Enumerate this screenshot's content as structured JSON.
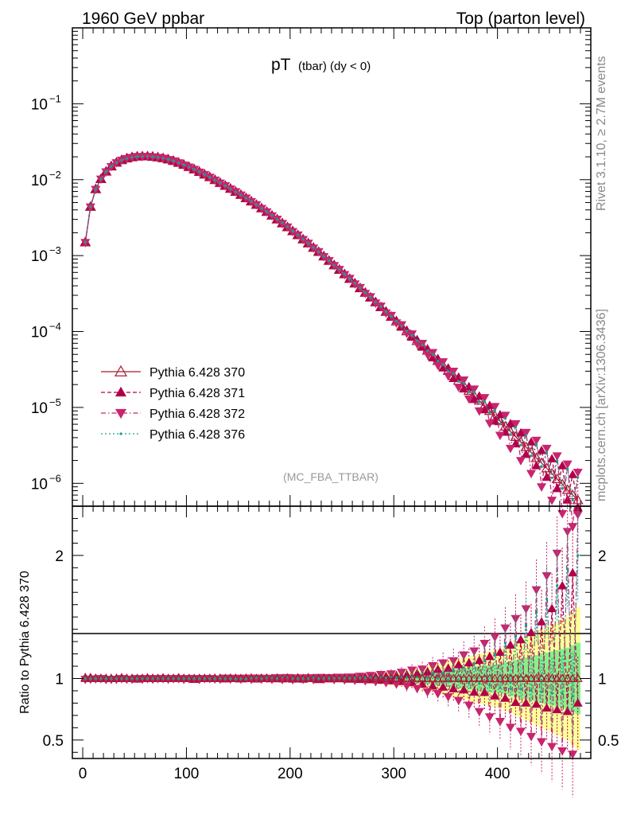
{
  "header": {
    "left": "1960 GeV ppbar",
    "right": "Top (parton level)"
  },
  "side_text": {
    "rivet": "Rivet 3.1.10, ≥ 2.7M events",
    "mcplots": "mcplots.cern.ch [arXiv:1306.3436]"
  },
  "chart_data": [
    {
      "type": "line",
      "panel": "main",
      "title_main": "pT",
      "title_sub": "(tbar) (dy < 0)",
      "watermark": "(MC_FBA_TTBAR)",
      "xlabel": "",
      "ylabel": "",
      "xlim": [
        -10,
        490
      ],
      "ylim": [
        5e-07,
        1.0
      ],
      "yscale": "log",
      "x_ticks": [
        0,
        100,
        200,
        300,
        400
      ],
      "y_tick_labels": [
        {
          "base": "10",
          "exp": "−1",
          "value": 0.1
        },
        {
          "base": "10",
          "exp": "−2",
          "value": 0.01
        },
        {
          "base": "10",
          "exp": "−3",
          "value": 0.001
        },
        {
          "base": "10",
          "exp": "−4",
          "value": 0.0001
        },
        {
          "base": "10",
          "exp": "−5",
          "value": 1e-05
        },
        {
          "base": "10",
          "exp": "−6",
          "value": 1e-06
        }
      ],
      "legend_position": "bottom-left",
      "x": [
        2.5,
        7.5,
        12.5,
        17.5,
        22.5,
        27.5,
        32.5,
        37.5,
        42.5,
        47.5,
        52.5,
        57.5,
        62.5,
        67.5,
        72.5,
        77.5,
        82.5,
        87.5,
        92.5,
        97.5,
        102.5,
        107.5,
        112.5,
        117.5,
        122.5,
        127.5,
        132.5,
        137.5,
        142.5,
        147.5,
        152.5,
        157.5,
        162.5,
        167.5,
        172.5,
        177.5,
        182.5,
        187.5,
        192.5,
        197.5,
        202.5,
        207.5,
        212.5,
        217.5,
        222.5,
        227.5,
        232.5,
        237.5,
        242.5,
        247.5,
        252.5,
        257.5,
        262.5,
        267.5,
        272.5,
        277.5,
        282.5,
        287.5,
        292.5,
        297.5,
        302.5,
        307.5,
        312.5,
        317.5,
        322.5,
        327.5,
        332.5,
        337.5,
        342.5,
        347.5,
        352.5,
        357.5,
        362.5,
        367.5,
        372.5,
        377.5,
        382.5,
        387.5,
        392.5,
        397.5,
        402.5,
        407.5,
        412.5,
        417.5,
        422.5,
        427.5,
        432.5,
        437.5,
        442.5,
        447.5,
        452.5,
        457.5,
        462.5,
        467.5,
        472.5,
        477.5
      ],
      "series": [
        {
          "name": "Pythia 6.428 370",
          "color": "#a51c30",
          "marker": "triangle-up-open",
          "line": "solid",
          "values": [
            0.0015,
            0.0044,
            0.0075,
            0.0102,
            0.0128,
            0.015,
            0.0168,
            0.0181,
            0.0191,
            0.0198,
            0.0202,
            0.0203,
            0.0203,
            0.0201,
            0.0197,
            0.0192,
            0.0185,
            0.0177,
            0.0167,
            0.0157,
            0.0147,
            0.0137,
            0.0127,
            0.0117,
            0.0108,
            0.00991,
            0.00908,
            0.00831,
            0.0076,
            0.00693,
            0.00631,
            0.00572,
            0.00518,
            0.00467,
            0.0042,
            0.00377,
            0.00337,
            0.003,
            0.00267,
            0.00237,
            0.0021,
            0.00186,
            0.00164,
            0.00145,
            0.00127,
            0.00112,
            0.000977,
            0.000855,
            0.000747,
            0.000652,
            0.000568,
            0.000495,
            0.00043,
            0.000373,
            0.000324,
            0.000281,
            0.000243,
            0.00021,
            0.000182,
            0.000157,
            0.000136,
            0.000117,
            0.000101,
            8.7e-05,
            7.5e-05,
            6.5e-05,
            5.6e-05,
            4.8e-05,
            4.1e-05,
            3.55e-05,
            3.05e-05,
            2.62e-05,
            2.25e-05,
            1.93e-05,
            1.66e-05,
            1.43e-05,
            1.23e-05,
            1.05e-05,
            9e-06,
            7.7e-06,
            6.6e-06,
            5.6e-06,
            4.8e-06,
            4.1e-06,
            3.5e-06,
            3e-06,
            2.55e-06,
            2.15e-06,
            1.85e-06,
            1.58e-06,
            1.34e-06,
            1.14e-06,
            9.7e-07,
            8.2e-07,
            7e-07,
            6e-07
          ]
        },
        {
          "name": "Pythia 6.428 371",
          "color": "#b0004a",
          "marker": "triangle-up-filled",
          "line": "dashed",
          "values": [
            0.00151,
            0.00443,
            0.00751,
            0.0102,
            0.0128,
            0.015,
            0.0168,
            0.0182,
            0.0191,
            0.0198,
            0.0201,
            0.0203,
            0.0204,
            0.0201,
            0.0197,
            0.0193,
            0.0185,
            0.0177,
            0.0168,
            0.0157,
            0.0147,
            0.0136,
            0.0127,
            0.0117,
            0.0108,
            0.00993,
            0.0091,
            0.00828,
            0.00762,
            0.00694,
            0.00629,
            0.00573,
            0.0052,
            0.00465,
            0.00421,
            0.00378,
            0.00336,
            0.00301,
            0.00266,
            0.00238,
            0.00209,
            0.00187,
            0.00163,
            0.00146,
            0.00127,
            0.00111,
            0.00098,
            0.000852,
            0.00075,
            0.00065,
            0.00057,
            0.000492,
            0.000433,
            0.00037,
            0.000327,
            0.000278,
            0.000246,
            0.000207,
            0.000185,
            0.000154,
            0.000139,
            0.000114,
            0.000104,
            8.4e-05,
            7.8e-05,
            6.2e-05,
            5.9e-05,
            4.5e-05,
            4.4e-05,
            3.3e-05,
            3.3e-05,
            2.4e-05,
            2.5e-05,
            1.75e-05,
            1.87e-05,
            1.27e-05,
            1.41e-05,
            9.3e-06,
            1.06e-05,
            6.6e-06,
            8e-06,
            4.7e-06,
            6.1e-06,
            3.3e-06,
            4.6e-06,
            2.4e-06,
            3.5e-06,
            1.7e-06,
            2.7e-06,
            1.2e-06,
            2.1e-06,
            8.5e-07,
            1.7e-06,
            6e-07,
            1.3e-06,
            4.8e-07
          ]
        },
        {
          "name": "Pythia 6.428 372",
          "color": "#c8256e",
          "marker": "triangle-down-filled",
          "line": "dashdot",
          "values": [
            0.00149,
            0.00438,
            0.00748,
            0.0102,
            0.0127,
            0.0149,
            0.0167,
            0.0181,
            0.019,
            0.0197,
            0.0202,
            0.0202,
            0.0203,
            0.02,
            0.0197,
            0.0192,
            0.0184,
            0.0177,
            0.0167,
            0.0156,
            0.0147,
            0.0137,
            0.0126,
            0.0117,
            0.0108,
            0.00988,
            0.00904,
            0.00834,
            0.00757,
            0.00695,
            0.00628,
            0.00574,
            0.00515,
            0.00469,
            0.00418,
            0.00378,
            0.00335,
            0.00302,
            0.00265,
            0.00239,
            0.00208,
            0.00187,
            0.00163,
            0.00146,
            0.00126,
            0.00113,
            0.000972,
            0.000862,
            0.000741,
            0.000659,
            0.000562,
            0.000501,
            0.000424,
            0.00038,
            0.000318,
            0.000288,
            0.000237,
            0.000217,
            0.000176,
            0.000163,
            0.00013,
            0.000123,
            9.5e-05,
            9.3e-05,
            6.9e-05,
            7e-05,
            5e-05,
            5.3e-05,
            3.6e-05,
            4e-05,
            2.6e-05,
            3e-05,
            1.85e-05,
            2.3e-05,
            1.3e-05,
            1.75e-05,
            9e-06,
            1.35e-05,
            6.2e-06,
            1.03e-05,
            4.3e-06,
            7.9e-06,
            2.9e-06,
            6.1e-06,
            2e-06,
            4.7e-06,
            1.35e-06,
            3.7e-06,
            9e-07,
            2.9e-06,
            6e-07,
            2.3e-06,
            4e-07,
            1.8e-06,
            2.7e-07,
            1.4e-06
          ]
        },
        {
          "name": "Pythia 6.428 376",
          "color": "#1a9e8f",
          "marker": "dot",
          "line": "dotted",
          "values": [
            0.0015,
            0.0044,
            0.0075,
            0.0102,
            0.0128,
            0.015,
            0.0168,
            0.0181,
            0.0191,
            0.0198,
            0.0202,
            0.0203,
            0.0203,
            0.0201,
            0.0197,
            0.0192,
            0.0185,
            0.0177,
            0.0167,
            0.0157,
            0.0147,
            0.0137,
            0.0127,
            0.0117,
            0.0108,
            0.0099,
            0.0091,
            0.0083,
            0.0076,
            0.0069,
            0.0063,
            0.0057,
            0.0052,
            0.0047,
            0.0042,
            0.0038,
            0.0034,
            0.003,
            0.0027,
            0.0024,
            0.0021,
            0.00186,
            0.00164,
            0.00145,
            0.00128,
            0.00112,
            0.00098,
            0.000858,
            0.00075,
            0.000655,
            0.00057,
            0.000497,
            0.000432,
            0.000376,
            0.000326,
            0.000284,
            0.000245,
            0.000213,
            0.000183,
            0.000159,
            0.000137,
            0.000119,
            0.000102,
            8.9e-05,
            7.6e-05,
            6.7e-05,
            5.6e-05,
            5e-05,
            4.1e-05,
            3.7e-05,
            3e-05,
            2.8e-05,
            2.2e-05,
            2.1e-05,
            1.6e-05,
            1.6e-05,
            1.18e-05,
            1.2e-05,
            8.5e-06,
            9.2e-06,
            6.1e-06,
            7.2e-06,
            4.4e-06,
            5.5e-06,
            3.2e-06,
            4.3e-06,
            2.3e-06,
            3.3e-06,
            1.65e-06,
            2.6e-06,
            1.18e-06,
            2e-06,
            8.5e-07,
            1.55e-06,
            6e-07,
            1.2e-06
          ]
        }
      ]
    },
    {
      "type": "line",
      "panel": "ratio",
      "xlabel": "",
      "ylabel": "Ratio to Pythia 6.428 370",
      "xlim": [
        -10,
        490
      ],
      "ylim": [
        0.35,
        2.4
      ],
      "y_ticks": [
        0.5,
        1,
        2
      ],
      "y_tick_labels": [
        "0.5",
        "1",
        "2"
      ],
      "x_ticks": [
        0,
        100,
        200,
        300,
        400
      ],
      "x_tick_labels": [
        "0",
        "100",
        "200",
        "300",
        "400"
      ],
      "band_note": "uncertainty bands on reference",
      "band_colors": {
        "inner": "#88f088",
        "outer": "#ffff99"
      },
      "band_inner_halfwidth": [
        0.01,
        0.01,
        0.01,
        0.01,
        0.01,
        0.01,
        0.01,
        0.01,
        0.01,
        0.01,
        0.01,
        0.01,
        0.01,
        0.01,
        0.01,
        0.01,
        0.01,
        0.01,
        0.01,
        0.01,
        0.01,
        0.01,
        0.01,
        0.01,
        0.01,
        0.01,
        0.01,
        0.01,
        0.01,
        0.01,
        0.01,
        0.01,
        0.01,
        0.01,
        0.01,
        0.01,
        0.01,
        0.01,
        0.01,
        0.01,
        0.01,
        0.01,
        0.01,
        0.01,
        0.01,
        0.01,
        0.01,
        0.01,
        0.01,
        0.01,
        0.01,
        0.012,
        0.014,
        0.016,
        0.018,
        0.02,
        0.022,
        0.024,
        0.026,
        0.028,
        0.03,
        0.032,
        0.034,
        0.036,
        0.04,
        0.045,
        0.05,
        0.055,
        0.06,
        0.065,
        0.07,
        0.075,
        0.08,
        0.085,
        0.09,
        0.095,
        0.1,
        0.105,
        0.11,
        0.115,
        0.12,
        0.13,
        0.14,
        0.15,
        0.16,
        0.17,
        0.18,
        0.19,
        0.2,
        0.21,
        0.22,
        0.23,
        0.24,
        0.25,
        0.27,
        0.29
      ],
      "band_outer_halfwidth": [
        0.02,
        0.02,
        0.02,
        0.02,
        0.02,
        0.02,
        0.02,
        0.02,
        0.02,
        0.02,
        0.02,
        0.02,
        0.02,
        0.02,
        0.02,
        0.02,
        0.02,
        0.02,
        0.02,
        0.02,
        0.02,
        0.02,
        0.02,
        0.02,
        0.02,
        0.02,
        0.02,
        0.02,
        0.02,
        0.02,
        0.02,
        0.02,
        0.02,
        0.02,
        0.02,
        0.02,
        0.02,
        0.02,
        0.02,
        0.02,
        0.02,
        0.02,
        0.02,
        0.02,
        0.02,
        0.02,
        0.02,
        0.02,
        0.02,
        0.02,
        0.02,
        0.024,
        0.028,
        0.032,
        0.036,
        0.04,
        0.044,
        0.048,
        0.052,
        0.056,
        0.06,
        0.064,
        0.068,
        0.072,
        0.08,
        0.09,
        0.1,
        0.11,
        0.12,
        0.13,
        0.14,
        0.15,
        0.16,
        0.17,
        0.18,
        0.19,
        0.2,
        0.21,
        0.22,
        0.23,
        0.24,
        0.26,
        0.28,
        0.3,
        0.32,
        0.34,
        0.36,
        0.38,
        0.4,
        0.42,
        0.44,
        0.46,
        0.48,
        0.5,
        0.54,
        0.58
      ]
    }
  ]
}
